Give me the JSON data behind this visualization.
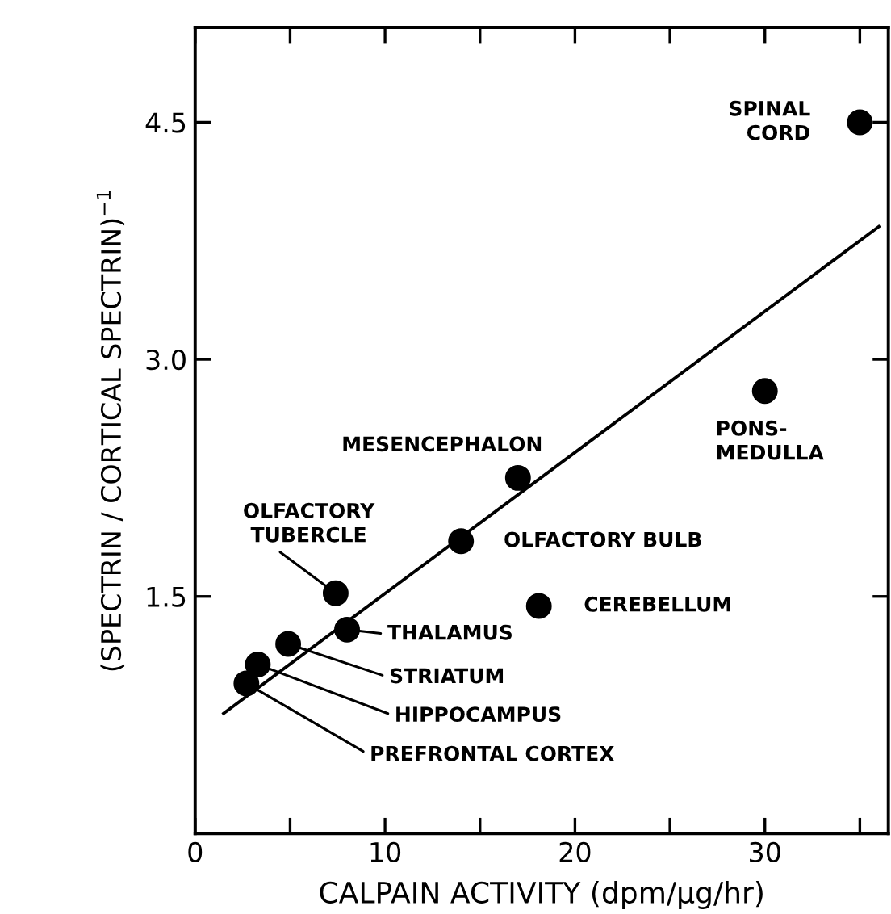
{
  "chart_data": {
    "type": "scatter",
    "xlabel": "CALPAIN ACTIVITY (dpm/μg/hr)",
    "ylabel": "(SPECTRIN / CORTICAL SPECTRIN)$^{−1}$",
    "xlim": [
      0,
      36.5
    ],
    "ylim": [
      0,
      5.1
    ],
    "xticks": [
      0,
      {
        "value": 5,
        "label": null
      },
      10,
      {
        "value": 15,
        "label": null
      },
      20,
      {
        "value": 25,
        "label": null
      },
      30,
      {
        "value": 35,
        "label": null
      }
    ],
    "yticks": [
      1.5,
      {
        "value": 3,
        "label": "3.0"
      },
      4.5
    ],
    "grid": false,
    "series": [
      {
        "marker": "circle",
        "color": "#000000",
        "x": [
          35,
          30,
          17,
          14,
          7.4,
          18.1,
          8,
          4.9,
          3.3,
          2.7
        ],
        "values": [
          4.5,
          2.8,
          2.25,
          1.85,
          1.52,
          1.44,
          1.29,
          1.2,
          1.07,
          0.95
        ]
      },
      {
        "type": "line",
        "color": "#000000",
        "x": [
          1.5,
          36
        ],
        "values": [
          0.76,
          3.84
        ]
      }
    ],
    "annotations": [
      {
        "text": "SPINAL\nCORD",
        "x": 35,
        "y": 4.5
      },
      {
        "text": "PONS-\nMEDULLA",
        "x": 30,
        "y": 2.8
      },
      {
        "text": "MESENCEPHALON",
        "x": 17,
        "y": 2.25
      },
      {
        "text": "OLFACTORY BULB",
        "x": 14,
        "y": 1.85
      },
      {
        "text": "OLFACTORY\nTUBERCLE",
        "x": 7.4,
        "y": 1.52
      },
      {
        "text": "CEREBELLUM",
        "x": 18.1,
        "y": 1.44
      },
      {
        "text": "THALAMUS",
        "x": 8,
        "y": 1.29
      },
      {
        "text": "STRIATUM",
        "x": 4.9,
        "y": 1.2
      },
      {
        "text": "HIPPOCAMPUS",
        "x": 3.3,
        "y": 1.07
      },
      {
        "text": "PREFRONTAL CORTEX",
        "x": 2.7,
        "y": 0.95
      }
    ]
  }
}
